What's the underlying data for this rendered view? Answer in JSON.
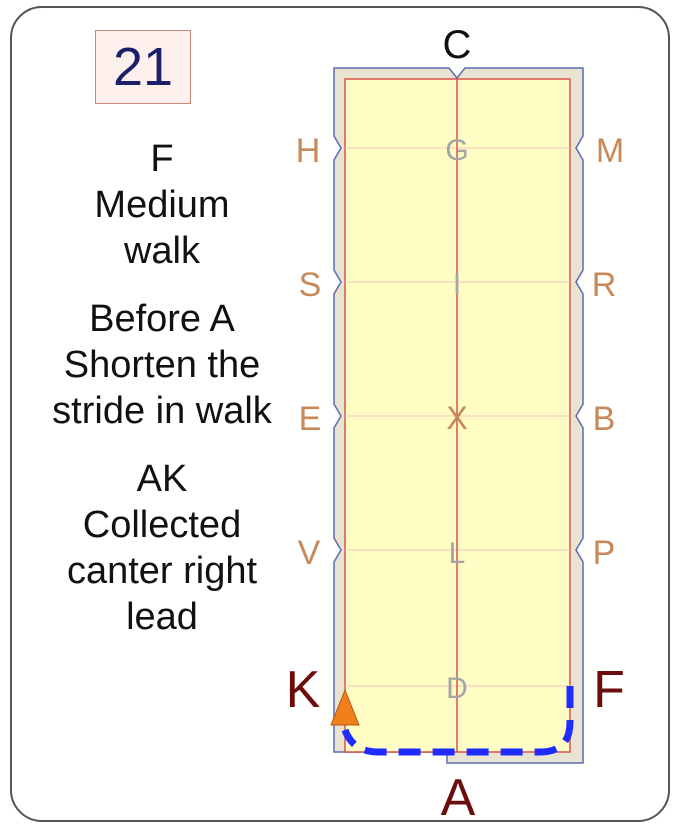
{
  "card": {
    "test_number": "21"
  },
  "instructions": [
    {
      "id": "move-1",
      "lines": [
        "F",
        "Medium",
        "walk"
      ]
    },
    {
      "id": "move-2",
      "lines": [
        "Before A",
        "Shorten the",
        "stride in walk"
      ]
    },
    {
      "id": "move-3",
      "lines": [
        "AK",
        "Collected",
        "canter right",
        "lead"
      ]
    }
  ],
  "arena": {
    "end_letters": {
      "top": "C",
      "bottom": "A"
    },
    "left_letters": [
      "H",
      "S",
      "E",
      "V",
      "K"
    ],
    "right_letters": [
      "M",
      "R",
      "B",
      "P",
      "F"
    ],
    "centerline_letters": [
      "G",
      "I",
      "X",
      "L",
      "D"
    ],
    "highlighted_letters": [
      "K",
      "F",
      "A"
    ],
    "colors": {
      "sand": "#e9e4d2",
      "surface": "#fffcc4",
      "border": "#5a6cb0",
      "rail_line": "#d9534f",
      "marker_letter": "#c8895a",
      "highlight_letter": "#6b0d0d",
      "centerline_letter": "#a5a5a5",
      "path": "#1f2cff",
      "direction_arrow": "#f07f1c"
    }
  },
  "route": {
    "description_letters": [
      "F",
      "A",
      "K"
    ],
    "style": "dashed",
    "direction_marker": "triangle-up"
  }
}
